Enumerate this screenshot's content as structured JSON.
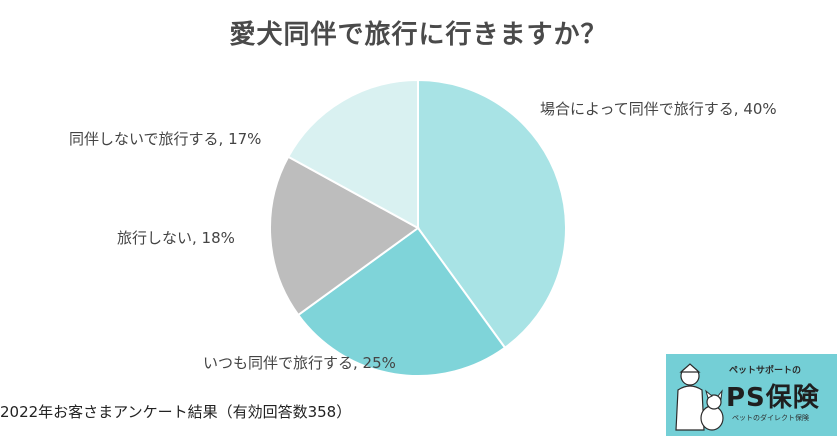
{
  "title": "愛犬同伴で旅行に行きますか？",
  "chart_data": {
    "type": "pie",
    "title": "愛犬同伴で旅行に行きますか？",
    "slices": [
      {
        "label": "場合によって同伴で旅行する, 40%",
        "value": 40,
        "color": "#a8e3e5"
      },
      {
        "label": "いつも同伴で旅行する, 25%",
        "value": 25,
        "color": "#7fd4d9"
      },
      {
        "label": "旅行しない, 18%",
        "value": 18,
        "color": "#bdbdbd"
      },
      {
        "label": "同伴しないで旅行する, 17%",
        "value": 17,
        "color": "#d9f1f1"
      }
    ],
    "start": "12 o'clock",
    "direction": "clockwise",
    "legend": "none"
  },
  "footnote": "2022年お客さまアンケート結果（有効回答数358）",
  "logo": {
    "tagline": "ペットサポートの",
    "name": "PS保険",
    "sub": "ペットのダイレクト保険"
  }
}
